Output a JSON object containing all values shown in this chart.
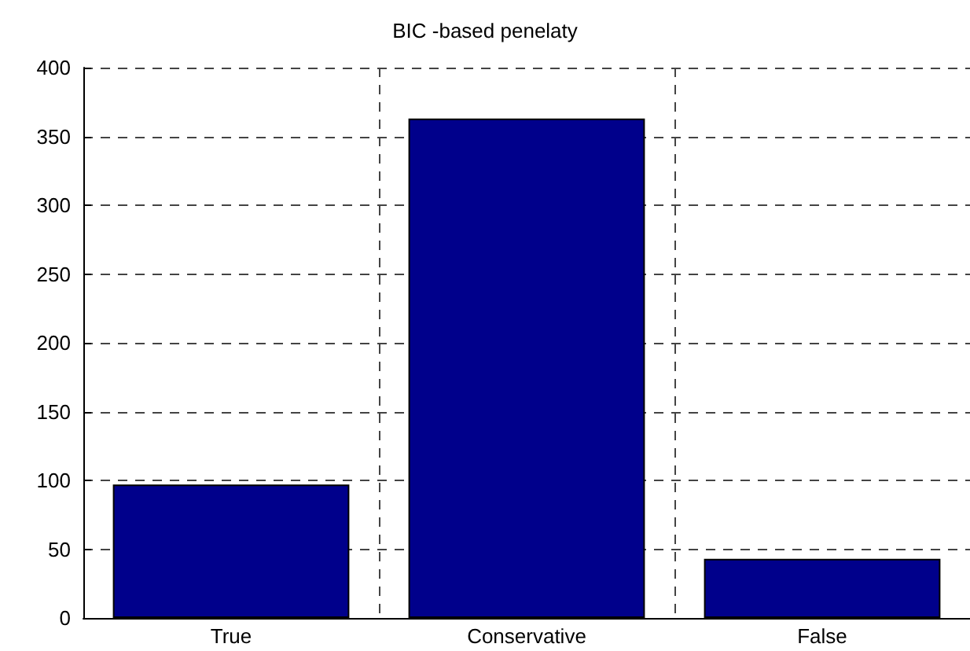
{
  "chart_data": {
    "type": "bar",
    "title": "BIC -based penelaty",
    "categories": [
      "True",
      "Conservative",
      "False"
    ],
    "values": [
      97,
      363,
      43
    ],
    "color": "#00008b",
    "ylim": [
      0,
      400
    ],
    "yticks": [
      0,
      50,
      100,
      150,
      200,
      250,
      300,
      350,
      400
    ],
    "grid": true
  }
}
